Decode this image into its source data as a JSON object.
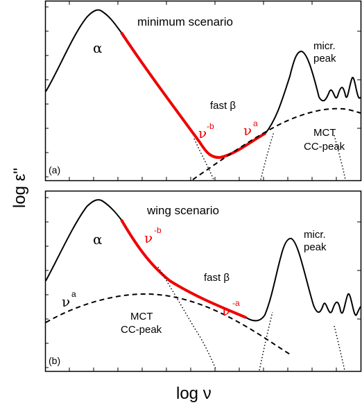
{
  "colors": {
    "curve": "#000000",
    "highlight": "#ee0000",
    "text": "#000000",
    "highlight_text": "#ee0000",
    "background": "#ffffff"
  },
  "axes": {
    "ylabel": "log ε\"",
    "xlabel": "log ν"
  },
  "panels": [
    {
      "panel_label": "(a)",
      "title": "minimum scenario",
      "alpha_label": "α",
      "fast_beta_label": "fast β",
      "nu_minus_b": "ν",
      "nu_minus_b_exp": "-b",
      "nu_a": "ν",
      "nu_a_exp": "a",
      "micr_line1": "micr.",
      "micr_line2": "peak",
      "mct_line1": "MCT",
      "mct_line2": "CC-peak"
    },
    {
      "panel_label": "(b)",
      "title": "wing scenario",
      "alpha_label": "α",
      "fast_beta_label": "fast β",
      "nu_minus_b": "ν",
      "nu_minus_b_exp": "-b",
      "nu_minus_a": "ν",
      "nu_minus_a_exp": "-a",
      "nu_a": "ν",
      "nu_a_exp": "a",
      "micr_line1": "micr.",
      "micr_line2": "peak",
      "mct_line1": "MCT",
      "mct_line2": "CC-peak"
    }
  ]
}
